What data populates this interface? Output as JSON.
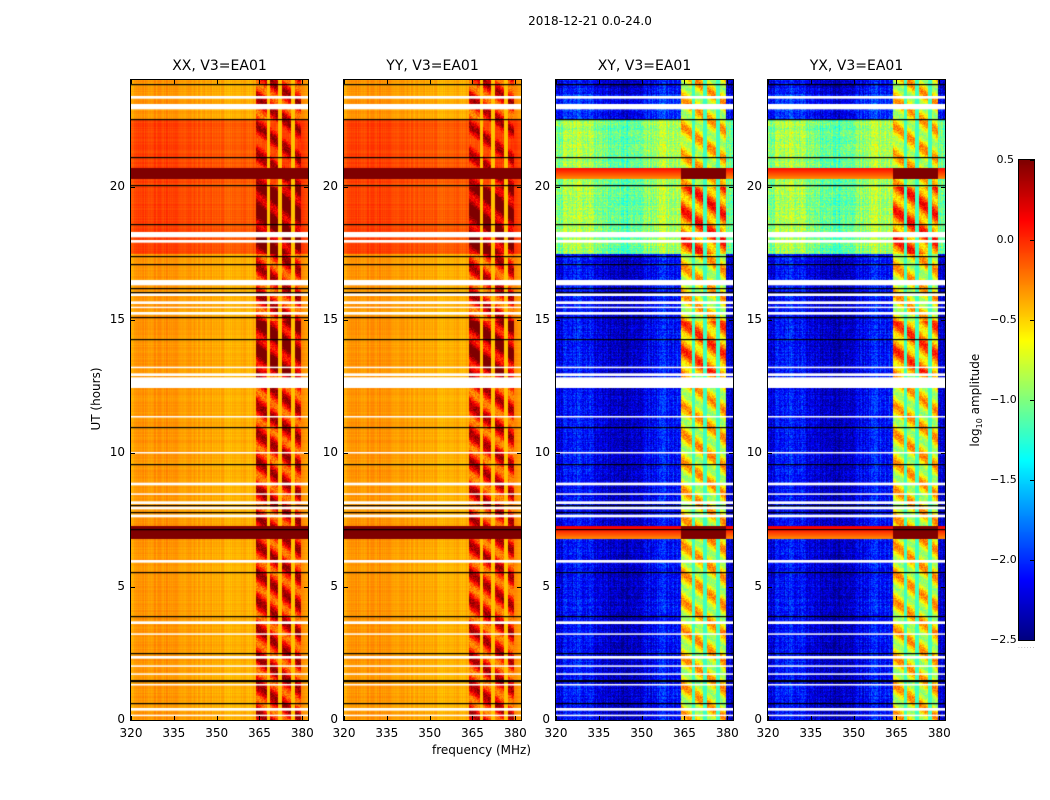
{
  "suptitle": "2018-12-21 0.0-24.0",
  "chart_data": {
    "type": "heatmap",
    "title": "2018-12-21 0.0-24.0",
    "xlabel": "frequency (MHz)",
    "ylabel": "UT (hours)",
    "xlim": [
      320,
      382
    ],
    "ylim": [
      0,
      24
    ],
    "xticks": [
      "320",
      "335",
      "350",
      "365",
      "380"
    ],
    "xtick_values": [
      320,
      335,
      350,
      365,
      380
    ],
    "yticks": [
      "0",
      "5",
      "10",
      "15",
      "20"
    ],
    "ytick_values": [
      0,
      5,
      10,
      15,
      20
    ],
    "colorbar": {
      "label_main": "log",
      "label_sub": "10",
      "label_rest": " amplitude",
      "colormap": "jet (cross-hand) / hot-like (parallel-hand)",
      "range": [
        -2.5,
        0.5
      ],
      "ticks": [
        "0.5",
        "0.0",
        "−0.5",
        "−1.0",
        "−1.5",
        "−2.0",
        "−2.5"
      ],
      "tick_values": [
        0.5,
        0.0,
        -0.5,
        -1.0,
        -1.5,
        -2.0,
        -2.5
      ]
    },
    "panels": [
      {
        "title": "XX, V3=EA01",
        "pol": "XX",
        "kind": "parallel",
        "base_level": -0.35,
        "rfi_level": 0.1
      },
      {
        "title": "YY, V3=EA01",
        "pol": "YY",
        "kind": "parallel",
        "base_level": -0.35,
        "rfi_level": 0.05
      },
      {
        "title": "XY, V3=EA01",
        "pol": "XY",
        "kind": "cross",
        "base_level": -2.2,
        "rfi_level": -0.6
      },
      {
        "title": "YX, V3=EA01",
        "pol": "YX",
        "kind": "cross",
        "base_level": -2.2,
        "rfi_level": -0.6
      }
    ],
    "rfi_band_mhz": [
      363.5,
      379.5
    ],
    "rfi_channel_gaps_mhz": [
      368.0,
      372.0,
      376.5
    ],
    "flagged_time_ranges_h": [
      [
        22.9,
        23.1
      ],
      [
        23.3,
        23.4
      ],
      [
        17.9,
        18.0
      ],
      [
        18.1,
        18.3
      ],
      [
        16.3,
        16.5
      ],
      [
        15.9,
        16.0
      ],
      [
        15.2,
        15.3
      ],
      [
        15.45,
        15.5
      ],
      [
        15.6,
        15.7
      ],
      [
        12.45,
        12.85
      ],
      [
        12.9,
        13.0
      ],
      [
        13.2,
        13.25
      ],
      [
        11.35,
        11.4
      ],
      [
        10.0,
        10.05
      ],
      [
        8.8,
        8.9
      ],
      [
        8.45,
        8.5
      ],
      [
        8.2,
        8.1
      ],
      [
        7.9,
        8.0
      ],
      [
        7.7,
        7.6
      ],
      [
        5.9,
        6.0
      ],
      [
        3.6,
        3.7
      ],
      [
        3.2,
        3.25
      ],
      [
        2.3,
        2.4
      ],
      [
        2.0,
        2.05
      ],
      [
        1.7,
        1.75
      ],
      [
        1.3,
        1.35
      ],
      [
        0.35,
        0.45
      ],
      [
        0.15,
        0.2
      ]
    ],
    "separator_times_h": [
      23.85,
      22.55,
      21.1,
      20.05,
      18.6,
      17.4,
      17.1,
      16.2,
      16.05,
      15.1,
      14.3,
      11.0,
      9.6,
      8.05,
      7.8,
      7.15,
      5.55,
      3.9,
      2.5,
      1.5,
      1.45,
      0.65
    ],
    "strong_event_times_h": [
      [
        6.8,
        7.3
      ],
      [
        20.3,
        20.7
      ]
    ]
  }
}
